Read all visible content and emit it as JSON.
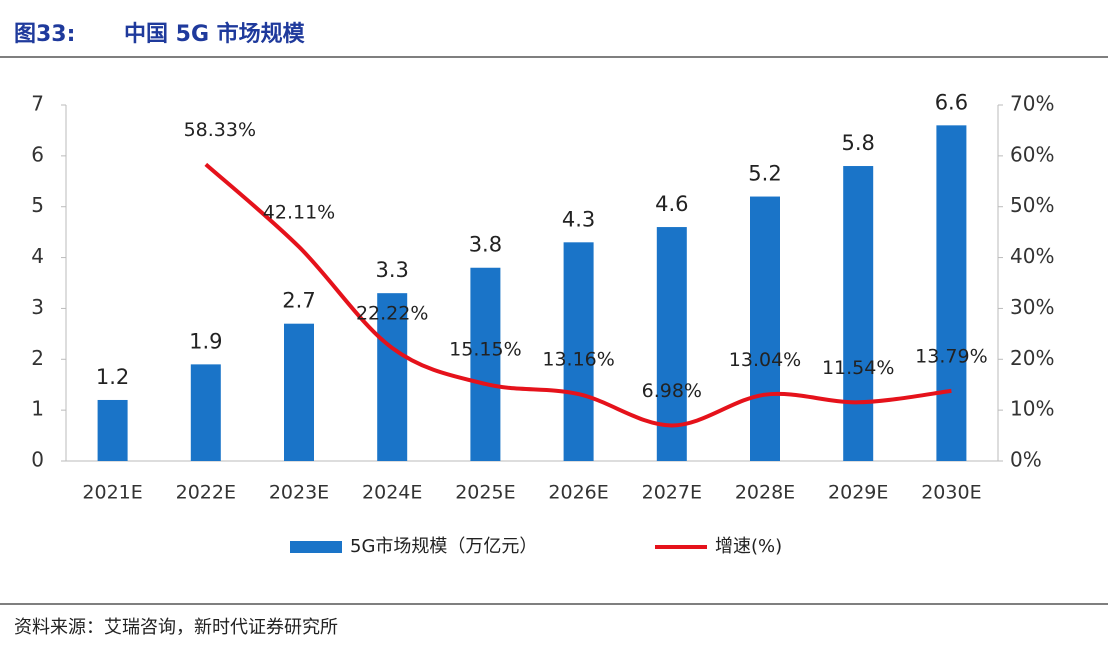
{
  "chart_data": {
    "type": "bar-line",
    "figure_label": "图33:",
    "title": "中国 5G 市场规模",
    "source": "资料来源：艾瑞咨询，新时代证券研究所",
    "categories": [
      "2021E",
      "2022E",
      "2023E",
      "2024E",
      "2025E",
      "2026E",
      "2027E",
      "2028E",
      "2029E",
      "2030E"
    ],
    "series": [
      {
        "name": "5G市场规模（万亿元）",
        "type": "bar",
        "color": "#1a74c8",
        "values": [
          1.2,
          1.9,
          2.7,
          3.3,
          3.8,
          4.3,
          4.6,
          5.2,
          5.8,
          6.6
        ]
      },
      {
        "name": "增速(%)",
        "type": "line",
        "axis": "y2",
        "color": "#e5121b",
        "values": [
          null,
          58.33,
          42.11,
          22.22,
          15.15,
          13.16,
          6.98,
          13.04,
          11.54,
          13.79
        ],
        "value_labels": [
          null,
          "58.33%",
          "42.11%",
          "22.22%",
          "15.15%",
          "13.16%",
          "6.98%",
          "13.04%",
          "11.54%",
          "13.79%"
        ]
      }
    ],
    "ylim": [
      0,
      7
    ],
    "yticks": [
      0,
      1,
      2,
      3,
      4,
      5,
      6,
      7
    ],
    "y2lim": [
      0,
      70
    ],
    "y2ticks": [
      {
        "value": 0,
        "label": "0%"
      },
      {
        "value": 10,
        "label": "10%"
      },
      {
        "value": 20,
        "label": "20%"
      },
      {
        "value": 30,
        "label": "30%"
      },
      {
        "value": 40,
        "label": "40%"
      },
      {
        "value": 50,
        "label": "50%"
      },
      {
        "value": 60,
        "label": "60%"
      },
      {
        "value": 70,
        "label": "70%"
      }
    ],
    "grid": false
  }
}
